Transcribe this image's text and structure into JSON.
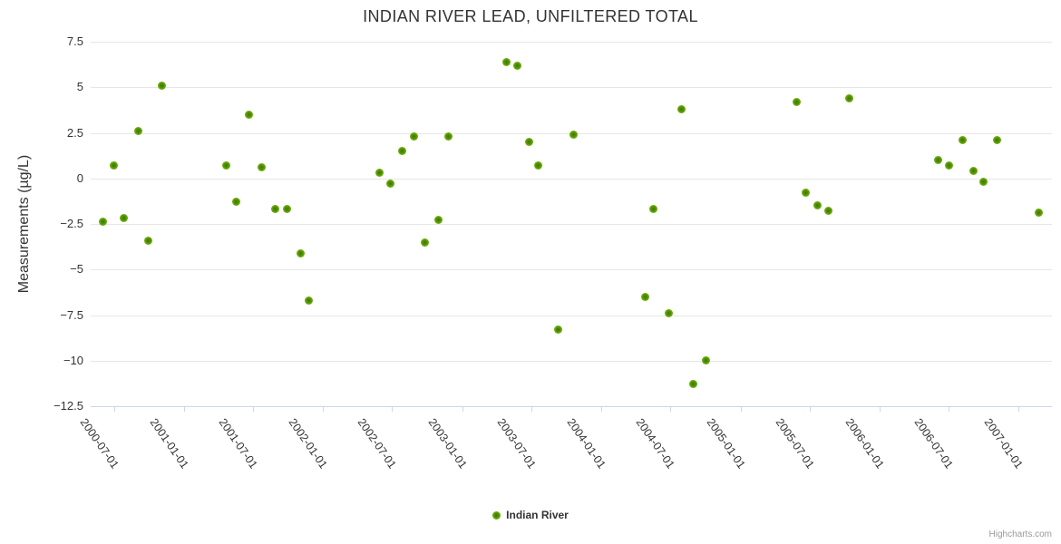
{
  "chart_data": {
    "type": "scatter",
    "title": "INDIAN RIVER LEAD, UNFILTERED TOTAL",
    "ylabel": "Measurements (µg/L)",
    "xlabel": "",
    "ylim": [
      -12.5,
      7.5
    ],
    "yticks": [
      {
        "value": 7.5,
        "label": "7.5"
      },
      {
        "value": 5,
        "label": "5"
      },
      {
        "value": 2.5,
        "label": "2.5"
      },
      {
        "value": 0,
        "label": "0"
      },
      {
        "value": -2.5,
        "label": "−2.5"
      },
      {
        "value": -5,
        "label": "−5"
      },
      {
        "value": -7.5,
        "label": "−7.5"
      },
      {
        "value": -10,
        "label": "−10"
      },
      {
        "value": -12.5,
        "label": "−12.5"
      }
    ],
    "xticks": [
      "2000-07-01",
      "2001-01-01",
      "2001-07-01",
      "2002-01-01",
      "2002-07-01",
      "2003-01-01",
      "2003-07-01",
      "2004-01-01",
      "2004-07-01",
      "2005-01-01",
      "2005-07-01",
      "2006-01-01",
      "2006-07-01",
      "2007-01-01"
    ],
    "x_range_dates": [
      "2000-05-01",
      "2007-03-29"
    ],
    "grid": true,
    "legend_position": "bottom-center",
    "series": [
      {
        "name": "Indian River",
        "color": "#73b00c",
        "points": [
          [
            "2000-06-02",
            -2.4
          ],
          [
            "2000-07-01",
            0.7
          ],
          [
            "2000-07-27",
            -2.2
          ],
          [
            "2000-09-03",
            2.6
          ],
          [
            "2000-09-29",
            -3.4
          ],
          [
            "2000-11-03",
            5.1
          ],
          [
            "2001-04-22",
            0.7
          ],
          [
            "2001-05-18",
            -1.3
          ],
          [
            "2001-06-21",
            3.5
          ],
          [
            "2001-07-24",
            0.6
          ],
          [
            "2001-08-29",
            -1.7
          ],
          [
            "2001-09-28",
            -1.7
          ],
          [
            "2001-11-04",
            -4.1
          ],
          [
            "2001-11-25",
            -6.7
          ],
          [
            "2002-05-29",
            0.3
          ],
          [
            "2002-06-27",
            -0.3
          ],
          [
            "2002-07-28",
            1.5
          ],
          [
            "2002-08-28",
            2.3
          ],
          [
            "2002-09-25",
            -3.5
          ],
          [
            "2002-10-30",
            -2.3
          ],
          [
            "2002-11-25",
            2.3
          ],
          [
            "2003-04-27",
            6.4
          ],
          [
            "2003-05-26",
            6.2
          ],
          [
            "2003-06-25",
            2
          ],
          [
            "2003-07-20",
            0.7
          ],
          [
            "2003-09-09",
            -8.3
          ],
          [
            "2003-10-21",
            2.4
          ],
          [
            "2004-04-26",
            -6.5
          ],
          [
            "2004-05-17",
            -1.7
          ],
          [
            "2004-06-27",
            -7.4
          ],
          [
            "2004-07-29",
            3.8
          ],
          [
            "2004-08-30",
            -11.3
          ],
          [
            "2004-10-01",
            -10
          ],
          [
            "2005-05-27",
            4.2
          ],
          [
            "2005-06-21",
            -0.8
          ],
          [
            "2005-07-22",
            -1.5
          ],
          [
            "2005-08-20",
            -1.8
          ],
          [
            "2005-10-13",
            4.4
          ],
          [
            "2006-06-04",
            1
          ],
          [
            "2006-07-03",
            0.7
          ],
          [
            "2006-08-07",
            2.1
          ],
          [
            "2006-09-05",
            0.4
          ],
          [
            "2006-10-01",
            -0.2
          ],
          [
            "2006-11-05",
            2.1
          ],
          [
            "2007-02-22",
            -1.9
          ]
        ]
      }
    ]
  },
  "legend": {
    "label": "Indian River"
  },
  "credit": {
    "label": "Highcharts.com"
  }
}
